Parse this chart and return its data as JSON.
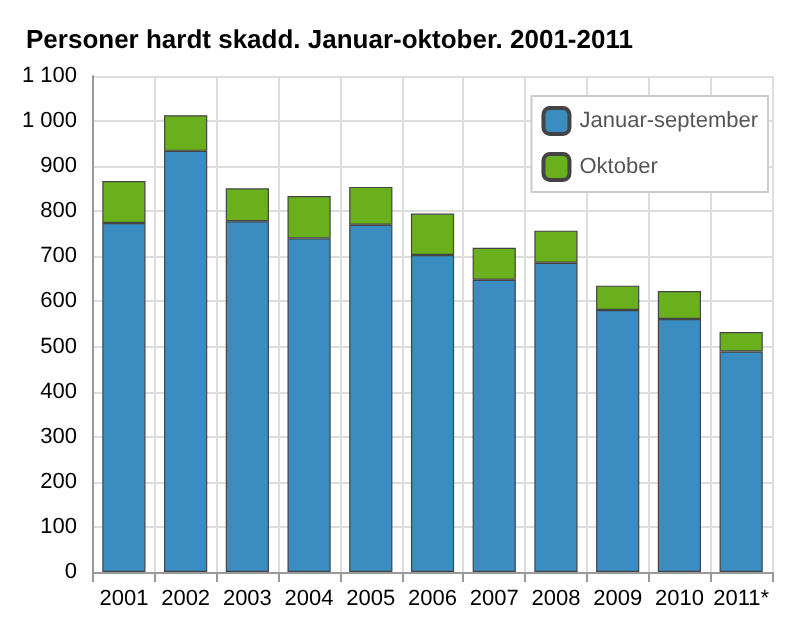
{
  "chart_data": {
    "type": "bar",
    "title": "Personer hardt skadd. Januar-oktober. 2001-2011",
    "categories": [
      "2001",
      "2002",
      "2003",
      "2004",
      "2005",
      "2006",
      "2007",
      "2008",
      "2009",
      "2010",
      "2011*"
    ],
    "stacked": true,
    "series": [
      {
        "name": "Januar-september",
        "color": "#3a8cc1",
        "values": [
          774,
          934,
          778,
          740,
          770,
          703,
          648,
          686,
          581,
          561,
          489
        ]
      },
      {
        "name": "Oktober",
        "color": "#6aaf1c",
        "values": [
          93,
          79,
          73,
          94,
          84,
          92,
          71,
          71,
          54,
          62,
          43
        ]
      }
    ],
    "ylim": [
      0,
      1100
    ],
    "yticks": [
      0,
      100,
      200,
      300,
      400,
      500,
      600,
      700,
      800,
      900,
      {
        "value": 1000,
        "label": "1 000"
      },
      {
        "value": 1100,
        "label": "1 100"
      }
    ],
    "grid": true,
    "legend": "top right"
  }
}
